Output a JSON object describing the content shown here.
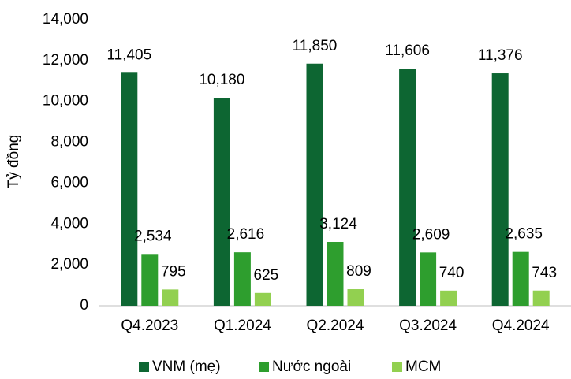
{
  "chart_data": {
    "type": "bar",
    "y_label": "Tỷ đồng",
    "categories": [
      "Q4.2023",
      "Q1.2024",
      "Q2.2024",
      "Q3.2024",
      "Q4.2024"
    ],
    "series": [
      {
        "name": "VNM (mẹ)",
        "color": "#0d6632",
        "values": [
          11405,
          10180,
          11850,
          11606,
          11376
        ],
        "value_labels": [
          "11,405",
          "10,180",
          "11,850",
          "11,606",
          "11,376"
        ]
      },
      {
        "name": "Nước ngoài",
        "color": "#2e9e2e",
        "values": [
          2534,
          2616,
          3124,
          2609,
          2635
        ],
        "value_labels": [
          "2,534",
          "2,616",
          "3,124",
          "2,609",
          "2,635"
        ]
      },
      {
        "name": "MCM",
        "color": "#92d050",
        "values": [
          795,
          625,
          809,
          740,
          743
        ],
        "value_labels": [
          "795",
          "625",
          "809",
          "740",
          "743"
        ]
      }
    ],
    "ylim": [
      0,
      14000
    ],
    "yticks": [
      0,
      {
        "value": 2000,
        "label": "2,000"
      },
      {
        "value": 4000,
        "label": "4,000"
      },
      {
        "value": 6000,
        "label": "6,000"
      },
      {
        "value": 8000,
        "label": "8,000"
      },
      {
        "value": 10000,
        "label": "10,000"
      },
      {
        "value": 12000,
        "label": "12,000"
      },
      {
        "value": 14000,
        "label": "14,000"
      }
    ],
    "legend": "bottom"
  }
}
